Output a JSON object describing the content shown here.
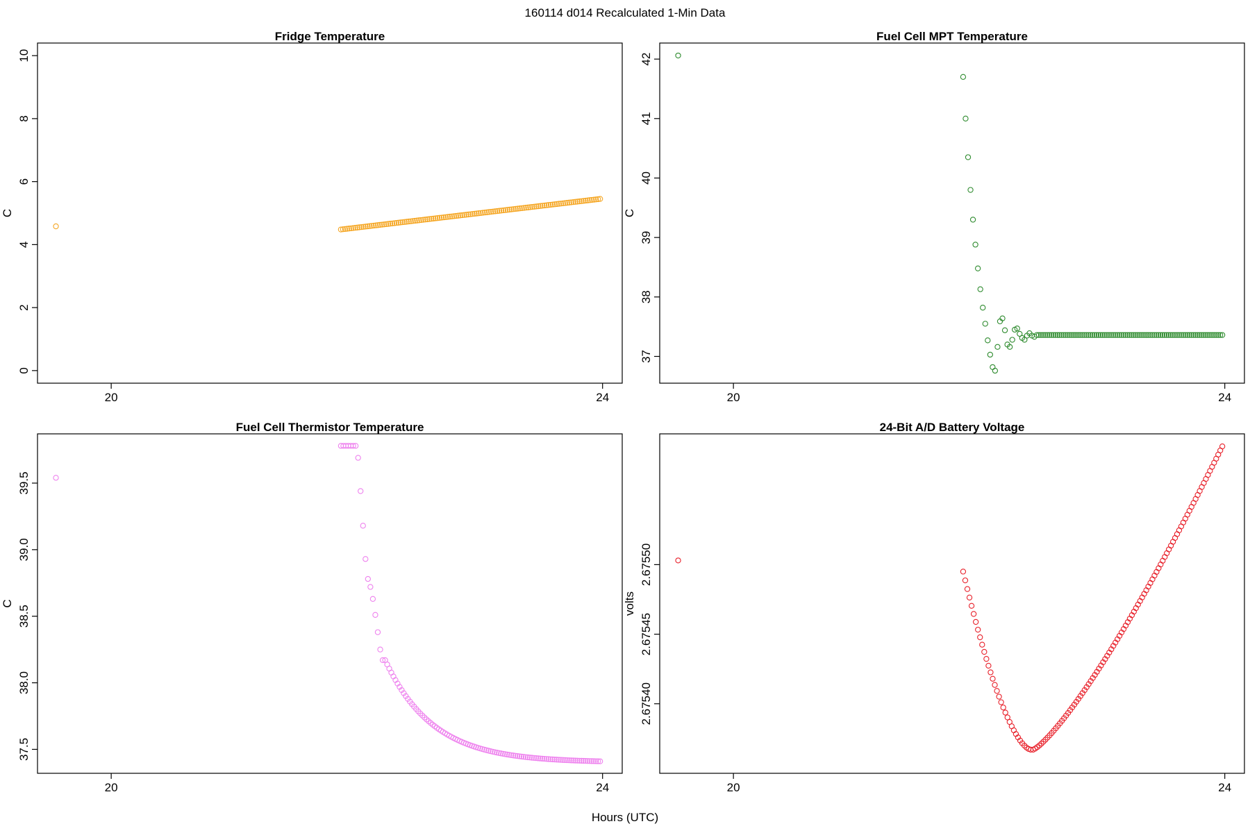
{
  "figure": {
    "title": "160114   d014   Recalculated 1-Min Data",
    "xlabel": "Hours (UTC)"
  },
  "chart_data": [
    {
      "type": "scatter",
      "title": "Fridge Temperature",
      "ylabel": "C",
      "color": "#f5a623",
      "xlim": [
        19.4,
        24.16
      ],
      "ylim": [
        -0.4,
        10.4
      ],
      "xticks": [
        20,
        24
      ],
      "yticks": [
        0,
        2,
        4,
        6,
        8,
        10
      ],
      "ytick_labels": [
        "0",
        "2",
        "4",
        "6",
        "8",
        "10"
      ],
      "segments": [
        {
          "x": [
            19.55
          ],
          "y": [
            4.58
          ]
        },
        {
          "x_start": 21.87,
          "x_end": 23.98,
          "n": 127,
          "shape": "linear",
          "y_start": 4.48,
          "y_end": 5.45
        }
      ]
    },
    {
      "type": "scatter",
      "title": "Fuel Cell MPT Temperature",
      "ylabel": "C",
      "color": "#2e8b2e",
      "xlim": [
        19.4,
        24.16
      ],
      "ylim": [
        36.55,
        42.27
      ],
      "xticks": [
        20,
        24
      ],
      "yticks": [
        37,
        38,
        39,
        40,
        41,
        42
      ],
      "ytick_labels": [
        "37",
        "38",
        "39",
        "40",
        "41",
        "42"
      ],
      "segments": [
        {
          "x": [
            19.55
          ],
          "y": [
            42.06
          ]
        },
        {
          "x": [
            21.87,
            21.89,
            21.91,
            21.93,
            21.95,
            21.97,
            21.99,
            22.01,
            22.03,
            22.05,
            22.07,
            22.09,
            22.11,
            22.13,
            22.15,
            22.17,
            22.19,
            22.21,
            22.23,
            22.25,
            22.27,
            22.29,
            22.31,
            22.33,
            22.35,
            22.37,
            22.39,
            22.41,
            22.43,
            22.45
          ],
          "y": [
            41.7,
            41.0,
            40.35,
            39.8,
            39.3,
            38.88,
            38.48,
            38.13,
            37.82,
            37.55,
            37.27,
            37.03,
            36.82,
            36.76,
            37.16,
            37.59,
            37.64,
            37.44,
            37.2,
            37.16,
            37.28,
            37.45,
            37.47,
            37.38,
            37.31,
            37.28,
            37.35,
            37.39,
            37.35,
            37.33
          ]
        },
        {
          "x_start": 22.47,
          "x_end": 23.98,
          "n": 91,
          "shape": "flat",
          "y_start": 37.36,
          "y_end": 37.36
        }
      ]
    },
    {
      "type": "scatter",
      "title": "Fuel Cell Thermistor Temperature",
      "ylabel": "C",
      "color": "#ee82ee",
      "xlim": [
        19.4,
        24.16
      ],
      "ylim": [
        37.32,
        39.87
      ],
      "xticks": [
        20,
        24
      ],
      "yticks": [
        37.5,
        38.0,
        38.5,
        39.0,
        39.5
      ],
      "ytick_labels": [
        "37.5",
        "38.0",
        "38.5",
        "39.0",
        "39.5"
      ],
      "segments": [
        {
          "x": [
            19.55
          ],
          "y": [
            39.54
          ]
        },
        {
          "x": [
            21.87,
            21.89,
            21.91,
            21.93,
            21.95,
            21.97,
            21.99,
            22.01,
            22.03,
            22.05,
            22.07,
            22.09,
            22.11,
            22.13,
            22.15,
            22.17,
            22.19,
            22.21
          ],
          "y": [
            39.78,
            39.78,
            39.78,
            39.78,
            39.78,
            39.78,
            39.78,
            39.69,
            39.44,
            39.18,
            38.93,
            38.78,
            38.72,
            38.63,
            38.51,
            38.38,
            38.25,
            38.17
          ]
        },
        {
          "x_start": 22.23,
          "x_end": 23.98,
          "n": 105,
          "shape": "decay",
          "y_start": 38.17,
          "y_end": 37.41,
          "decay_rate": 4.5
        }
      ]
    },
    {
      "type": "scatter",
      "title": "24-Bit A/D Battery Voltage",
      "ylabel": "volts",
      "color": "#e8202a",
      "xlim": [
        19.4,
        24.16
      ],
      "ylim": [
        2.67535,
        2.675594
      ],
      "xticks": [
        20,
        24
      ],
      "yticks": [
        2.6754,
        2.67545,
        2.6755
      ],
      "ytick_labels": [
        "2.67540",
        "2.67545",
        "2.67550"
      ],
      "segments": [
        {
          "x": [
            19.55
          ],
          "y": [
            2.675503
          ]
        },
        {
          "x_start": 21.87,
          "x_end": 22.42,
          "n": 33,
          "shape": "curve_down",
          "y_start": 2.675495,
          "y_end": 2.675367
        },
        {
          "x_start": 22.44,
          "x_end": 23.98,
          "n": 93,
          "shape": "curve_up",
          "y_start": 2.675367,
          "y_end": 2.675585
        }
      ]
    }
  ]
}
